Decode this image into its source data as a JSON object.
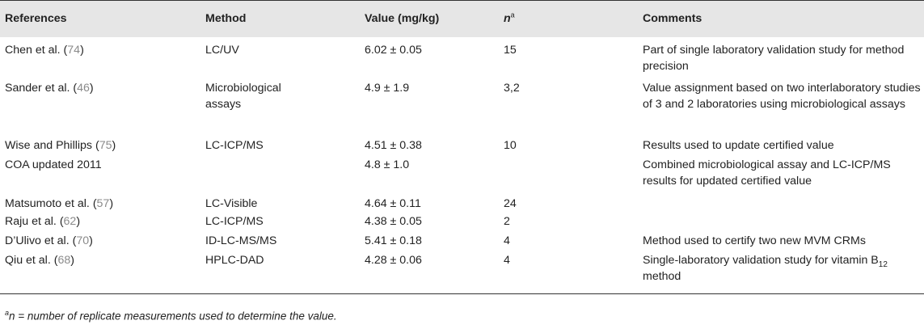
{
  "table": {
    "headers": {
      "references": "References",
      "method": "Method",
      "value": "Value (mg/kg)",
      "n": "n",
      "n_sup": "a",
      "comments": "Comments"
    },
    "rows": [
      {
        "ref_text": "Chen et al. (",
        "ref_num": "74",
        "ref_close": ")",
        "method": "LC/UV",
        "value": "6.02 ± 0.05",
        "n": "15",
        "comment": "Part of single laboratory validation study for method precision"
      },
      {
        "ref_text": "Sander et al. (",
        "ref_num": "46",
        "ref_close": ")",
        "method": "Microbiological assays",
        "value": "4.9 ± 1.9",
        "n": "3,2",
        "comment": "Value assignment based on two interlaboratory studies of 3 and 2 laboratories using microbiological assays"
      },
      {
        "ref_text": "Wise and Phillips (",
        "ref_num": "75",
        "ref_close": ")",
        "method": "LC-ICP/MS",
        "value": "4.51 ± 0.38",
        "n": "10",
        "comment": "Results used to update certified value"
      },
      {
        "ref_text": "COA updated 2011",
        "ref_num": "",
        "ref_close": "",
        "method": "",
        "value": "4.8 ± 1.0",
        "n": "",
        "comment": "Combined microbiological assay and LC-ICP/MS results for updated certified value"
      },
      {
        "ref_text": "Matsumoto et al. (",
        "ref_num": "57",
        "ref_close": ")",
        "method": "LC-Visible",
        "value": "4.64 ± 0.11",
        "n": "24",
        "comment": ""
      },
      {
        "ref_text": "Raju et al. (",
        "ref_num": "62",
        "ref_close": ")",
        "method": "LC-ICP/MS",
        "value": "4.38 ± 0.05",
        "n": "2",
        "comment": ""
      },
      {
        "ref_text": "D’Ulivo et al. (",
        "ref_num": "70",
        "ref_close": ")",
        "method": "ID-LC-MS/MS",
        "value": "5.41 ± 0.18",
        "n": "4",
        "comment": "Method used to certify two new MVM CRMs"
      },
      {
        "ref_text": "Qiu et al. (",
        "ref_num": "68",
        "ref_close": ")",
        "method": "HPLC-DAD",
        "value": "4.28 ± 0.06",
        "n": "4",
        "comment_pre": "Single-laboratory validation study for vitamin B",
        "comment_sub": "12",
        "comment_post": " method"
      }
    ]
  },
  "footnote": {
    "sup": "a",
    "text": "n = number of replicate measurements used to determine the value."
  }
}
